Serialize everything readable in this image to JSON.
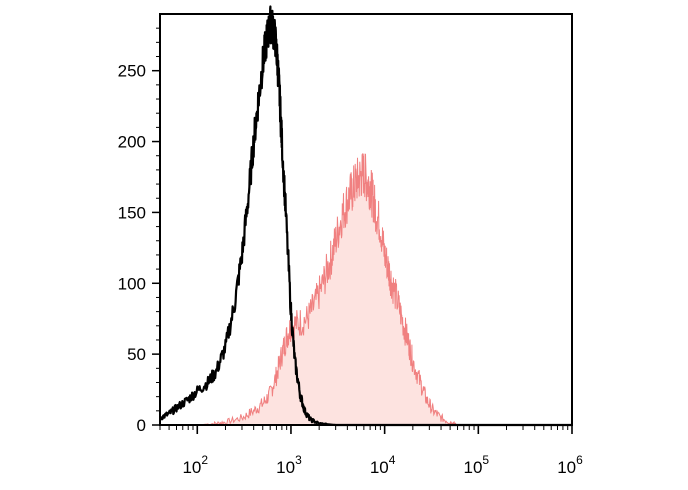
{
  "chart_data": {
    "type": "area",
    "title": "",
    "xlabel": "",
    "ylabel": "",
    "x_scale": "log",
    "xlim": [
      40,
      1000000
    ],
    "ylim": [
      0,
      290
    ],
    "grid": false,
    "legend": "none",
    "y_ticks": [
      0,
      50,
      100,
      150,
      200,
      250
    ],
    "y_tick_labels": [
      "0",
      "50",
      "100",
      "150",
      "200",
      "250"
    ],
    "x_ticks": [
      100,
      1000,
      10000,
      100000,
      1000000
    ],
    "x_tick_labels": [
      {
        "base": "10",
        "exp": "2"
      },
      {
        "base": "10",
        "exp": "3"
      },
      {
        "base": "10",
        "exp": "4"
      },
      {
        "base": "10",
        "exp": "5"
      },
      {
        "base": "10",
        "exp": "6"
      }
    ],
    "series": [
      {
        "style": "line",
        "color": "#000000",
        "x": [
          40,
          50,
          60,
          80,
          100,
          130,
          160,
          200,
          250,
          300,
          350,
          400,
          450,
          500,
          550,
          600,
          640,
          680,
          720,
          760,
          800,
          880,
          1000,
          1100,
          1250,
          1400,
          1600,
          2000,
          3000,
          10000,
          100000,
          1000000
        ],
        "y": [
          5,
          8,
          12,
          18,
          24,
          30,
          38,
          55,
          85,
          120,
          160,
          200,
          230,
          255,
          272,
          283,
          280,
          272,
          255,
          230,
          200,
          150,
          80,
          45,
          22,
          10,
          4,
          1,
          0,
          0,
          0,
          0
        ]
      },
      {
        "style": "area",
        "color": "#f08080",
        "fill": "#fde3e0",
        "x": [
          100,
          150,
          200,
          300,
          400,
          500,
          600,
          700,
          800,
          900,
          1000,
          1200,
          1500,
          1800,
          2200,
          2600,
          3000,
          3500,
          4000,
          4500,
          5000,
          5500,
          6000,
          6500,
          7000,
          7500,
          8000,
          9000,
          10000,
          11000,
          12000,
          14000,
          16000,
          18000,
          20000,
          24000,
          28000,
          33000,
          40000,
          50000,
          55000,
          60000,
          100000,
          1000000
        ],
        "y": [
          0,
          1,
          2,
          5,
          10,
          15,
          22,
          35,
          50,
          62,
          70,
          72,
          75,
          85,
          100,
          115,
          130,
          148,
          158,
          165,
          172,
          175,
          178,
          172,
          168,
          160,
          152,
          140,
          120,
          110,
          100,
          85,
          70,
          58,
          45,
          30,
          18,
          10,
          5,
          2,
          1,
          0,
          0,
          0
        ]
      }
    ]
  }
}
